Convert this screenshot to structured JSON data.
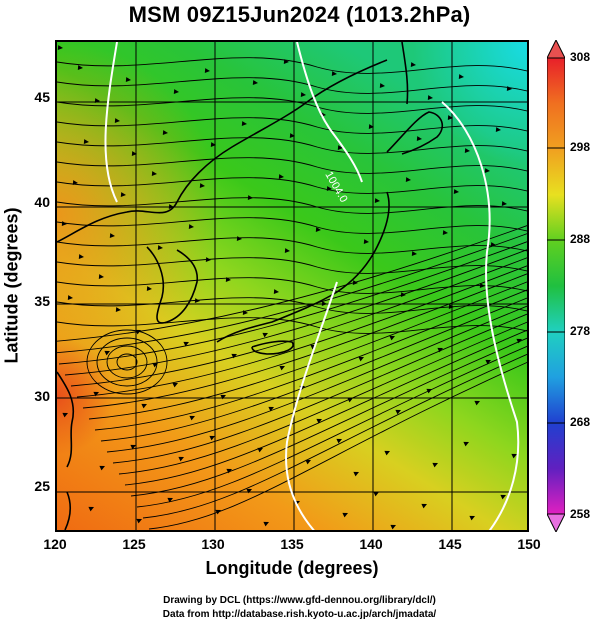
{
  "title": "MSM 09Z15Jun2024 (1013.2hPa)",
  "xlabel": "Longitude (degrees)",
  "ylabel": "Latitude  (degrees)",
  "x_ticks": [
    "120",
    "125",
    "130",
    "135",
    "140",
    "145",
    "150"
  ],
  "y_ticks": [
    "25",
    "30",
    "35",
    "40",
    "45"
  ],
  "colorbar_ticks": [
    "308",
    "298",
    "288",
    "278",
    "268",
    "258"
  ],
  "contour_label": "1004.0",
  "credits": {
    "line1": "Drawing by DCL (https://www.gfd-dennou.org/library/dcl/)",
    "line2": "Data from http://database.rish.kyoto-u.ac.jp/arch/jmadata/"
  },
  "colors": {
    "warm": "#f07a1e",
    "mid": "#22c41a",
    "cool": "#18d6e0",
    "land": "#000000",
    "contour": "#ffffff"
  }
}
